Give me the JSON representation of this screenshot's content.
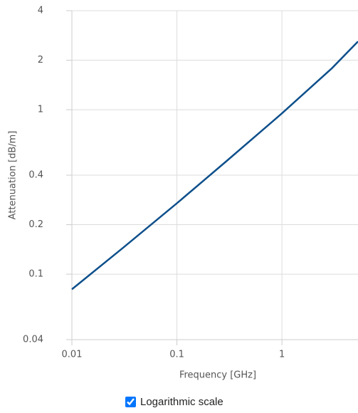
{
  "chart_data": {
    "type": "line",
    "x_label": "Frequency [GHz]",
    "y_label": "Attenuation [dB/m]",
    "x": [
      0.01,
      0.03,
      0.1,
      0.3,
      1,
      3,
      5.3
    ],
    "values": [
      0.081,
      0.143,
      0.27,
      0.49,
      0.95,
      1.79,
      2.6
    ],
    "color": "#0d4f8b",
    "xscale": "log",
    "yscale": "log",
    "xlim": [
      0.01,
      5.3
    ],
    "ylim": [
      0.04,
      4
    ],
    "xticks": [
      0.01,
      0.1,
      1
    ],
    "yticks": [
      0.04,
      0.1,
      0.2,
      0.4,
      1,
      2,
      4
    ],
    "grid": true
  },
  "log_toggle": {
    "label": "Logarithmic scale",
    "checked": true
  }
}
